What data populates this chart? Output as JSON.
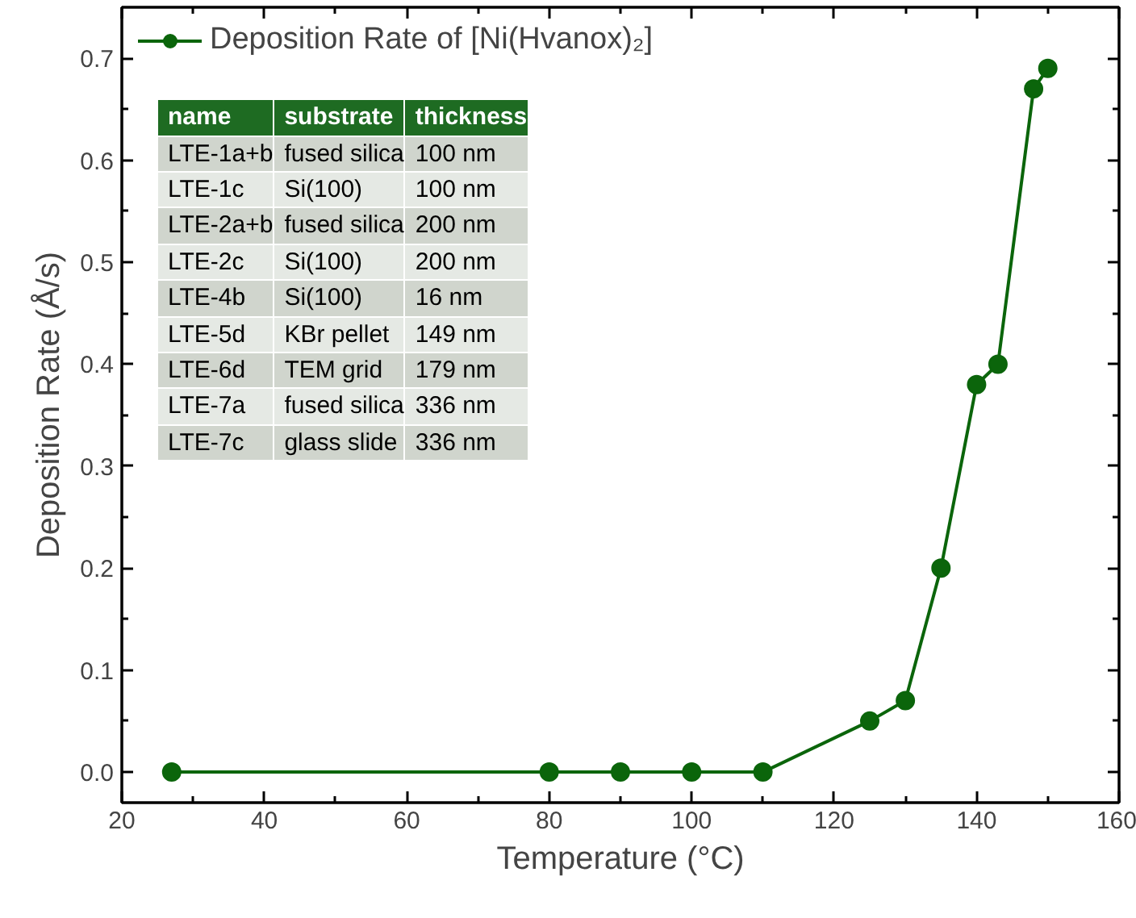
{
  "chart_data": {
    "type": "line",
    "xlabel": "Temperature (°C)",
    "ylabel": "Deposition Rate (Å/s)",
    "x": [
      27,
      80,
      90,
      100,
      110,
      125,
      130,
      135,
      140,
      143,
      148,
      150
    ],
    "series": [
      {
        "name": "Deposition Rate of [Ni(Hvanox)₂]",
        "color": "#0b650b",
        "values": [
          0,
          0,
          0,
          0,
          0,
          0.05,
          0.07,
          0.2,
          0.38,
          0.4,
          0.67,
          0.69
        ]
      }
    ],
    "xlim": [
      20,
      160
    ],
    "ylim": [
      -0.03,
      0.75
    ],
    "xticks": [
      20,
      {
        "value": 30,
        "label": null
      },
      40,
      {
        "value": 50,
        "label": null
      },
      60,
      {
        "value": 70,
        "label": null
      },
      80,
      {
        "value": 90,
        "label": null
      },
      100,
      {
        "value": 110,
        "label": null
      },
      120,
      {
        "value": 130,
        "label": null
      },
      140,
      {
        "value": 150,
        "label": null
      },
      160
    ],
    "yticks": [
      {
        "value": 0,
        "label": "0.0"
      },
      {
        "value": 0.05,
        "label": null
      },
      0.1,
      {
        "value": 0.15,
        "label": null
      },
      0.2,
      {
        "value": 0.25,
        "label": null
      },
      0.3,
      {
        "value": 0.35,
        "label": null
      },
      0.4,
      {
        "value": 0.45,
        "label": null
      },
      0.5,
      {
        "value": 0.55,
        "label": null
      },
      0.6,
      {
        "value": 0.65,
        "label": null
      },
      0.7
    ],
    "marker": "circle",
    "line_style": "solid",
    "grid": false,
    "legend": "top left",
    "annotations": [
      "name",
      "substrate",
      "thickness",
      "LTE-1a+b",
      "fused silica",
      "100 nm",
      "LTE-1c",
      "Si(100)",
      "100 nm",
      "LTE-2a+b",
      "fused silica",
      "200 nm",
      "LTE-2c",
      "Si(100)",
      "200 nm",
      "LTE-4b",
      "Si(100)",
      "16 nm",
      "LTE-5d",
      "KBr pellet",
      "149 nm",
      "LTE-6d",
      "TEM grid",
      "179 nm",
      "LTE-7a",
      "fused silica",
      "336 nm",
      "LTE-7c",
      "glass slide",
      "336 nm"
    ]
  }
}
